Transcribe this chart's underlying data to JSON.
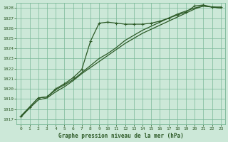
{
  "title": "Graphe pression niveau de la mer (hPa)",
  "xlim": [
    -0.5,
    23.5
  ],
  "ylim": [
    1016.5,
    1028.5
  ],
  "xticks": [
    0,
    1,
    2,
    3,
    4,
    5,
    6,
    7,
    8,
    9,
    10,
    11,
    12,
    13,
    14,
    15,
    16,
    17,
    18,
    19,
    20,
    21,
    22,
    23
  ],
  "yticks": [
    1017,
    1018,
    1019,
    1020,
    1021,
    1022,
    1023,
    1024,
    1025,
    1026,
    1027,
    1028
  ],
  "background_color": "#cce8d8",
  "grid_color": "#7ab898",
  "line_color": "#2d5a27",
  "line1_x": [
    0,
    1,
    2,
    3,
    4,
    5,
    6,
    7,
    8,
    9,
    10,
    11,
    12,
    13,
    14,
    15,
    16,
    17,
    18,
    19,
    20,
    21,
    22,
    23
  ],
  "line1_y": [
    1017.3,
    1018.2,
    1019.1,
    1019.2,
    1020.0,
    1020.5,
    1021.1,
    1021.9,
    1024.7,
    1026.5,
    1026.6,
    1026.5,
    1026.4,
    1026.4,
    1026.4,
    1026.5,
    1026.7,
    1027.0,
    1027.3,
    1027.6,
    1028.2,
    1028.3,
    1028.1,
    1028.1
  ],
  "line2_x": [
    0,
    1,
    2,
    3,
    4,
    5,
    6,
    7,
    8,
    9,
    10,
    11,
    12,
    13,
    14,
    15,
    16,
    17,
    18,
    19,
    20,
    21,
    22,
    23
  ],
  "line2_y": [
    1017.3,
    1018.2,
    1019.1,
    1019.2,
    1019.9,
    1020.4,
    1020.9,
    1021.6,
    1022.3,
    1023.0,
    1023.5,
    1024.1,
    1024.8,
    1025.3,
    1025.8,
    1026.2,
    1026.6,
    1027.0,
    1027.4,
    1027.7,
    1028.0,
    1028.2,
    1028.1,
    1028.0
  ],
  "line3_x": [
    0,
    1,
    2,
    3,
    4,
    5,
    6,
    7,
    8,
    9,
    10,
    11,
    12,
    13,
    14,
    15,
    16,
    17,
    18,
    19,
    20,
    21,
    22,
    23
  ],
  "line3_y": [
    1017.2,
    1018.1,
    1018.9,
    1019.1,
    1019.7,
    1020.2,
    1020.8,
    1021.5,
    1022.1,
    1022.7,
    1023.3,
    1023.9,
    1024.5,
    1025.0,
    1025.5,
    1025.9,
    1026.3,
    1026.7,
    1027.1,
    1027.5,
    1027.9,
    1028.2,
    1028.1,
    1028.0
  ]
}
